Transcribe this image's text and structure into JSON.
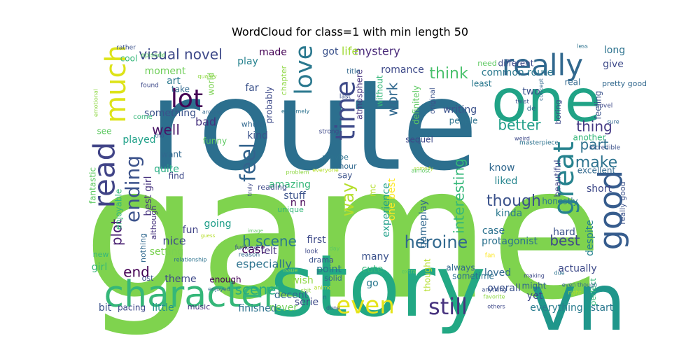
{
  "chart_data": {
    "type": "wordcloud",
    "title": "WordCloud for class=1 with min length 50",
    "palette": [
      "#440154",
      "#3b528b",
      "#2c728e",
      "#21918c",
      "#27ad81",
      "#5ec962",
      "#8fd744",
      "#fde725"
    ],
    "words": [
      {
        "text": "game",
        "weight": 1.0,
        "color": "#7fd34e"
      },
      {
        "text": "route",
        "weight": 0.78,
        "color": "#2c6f8e"
      },
      {
        "text": "story",
        "weight": 0.56,
        "color": "#22a884"
      },
      {
        "text": "vn",
        "weight": 0.54,
        "color": "#1f968b"
      },
      {
        "text": "one",
        "weight": 0.42,
        "color": "#20a386"
      },
      {
        "text": "character",
        "weight": 0.28,
        "color": "#35b779"
      },
      {
        "text": "really",
        "weight": 0.22,
        "color": "#31688e"
      },
      {
        "text": "much",
        "weight": 0.18,
        "color": "#dde318"
      },
      {
        "text": "good",
        "weight": 0.22,
        "color": "#365c8d"
      },
      {
        "text": "read",
        "weight": 0.2,
        "color": "#414487"
      },
      {
        "text": "great",
        "weight": 0.18,
        "color": "#26828e"
      },
      {
        "text": "love",
        "weight": 0.14,
        "color": "#2a788e"
      },
      {
        "text": "time",
        "weight": 0.17,
        "color": "#3e4a89"
      },
      {
        "text": "lot",
        "weight": 0.15,
        "color": "#440154"
      },
      {
        "text": "even",
        "weight": 0.16,
        "color": "#e5e419"
      },
      {
        "text": "still",
        "weight": 0.14,
        "color": "#46327e"
      },
      {
        "text": "feel",
        "weight": 0.13,
        "color": "#33638d"
      },
      {
        "text": "ending",
        "weight": 0.12,
        "color": "#3b528b"
      },
      {
        "text": "way",
        "weight": 0.09,
        "color": "#b5de2b"
      },
      {
        "text": "visual novel",
        "weight": 0.07,
        "color": "#3e4989"
      },
      {
        "text": "think",
        "weight": 0.07,
        "color": "#4ac16d"
      },
      {
        "text": "well",
        "weight": 0.07,
        "color": "#471365"
      },
      {
        "text": "thing",
        "weight": 0.06,
        "color": "#443983"
      },
      {
        "text": "heroine",
        "weight": 0.07,
        "color": "#31688e"
      },
      {
        "text": "make",
        "weight": 0.06,
        "color": "#2c728e"
      },
      {
        "text": "better",
        "weight": 0.06,
        "color": "#1f9e89"
      },
      {
        "text": "though",
        "weight": 0.06,
        "color": "#3b528b"
      },
      {
        "text": "plot",
        "weight": 0.06,
        "color": "#481f70"
      },
      {
        "text": "interesting",
        "weight": 0.06,
        "color": "#35b779"
      },
      {
        "text": "h scene",
        "weight": 0.05,
        "color": "#2a788e"
      },
      {
        "text": "best",
        "weight": 0.05,
        "color": "#3e4989"
      },
      {
        "text": "end",
        "weight": 0.05,
        "color": "#440154"
      },
      {
        "text": "scene",
        "weight": 0.05,
        "color": "#25ac82"
      },
      {
        "text": "work",
        "weight": 0.05,
        "color": "#31688e"
      },
      {
        "text": "part",
        "weight": 0.05,
        "color": "#2d708e"
      },
      {
        "text": "mystery",
        "weight": 0.04,
        "color": "#482878"
      },
      {
        "text": "life",
        "weight": 0.04,
        "color": "#a2da37"
      },
      {
        "text": "common route",
        "weight": 0.04,
        "color": "#2a788e"
      },
      {
        "text": "bad",
        "weight": 0.04,
        "color": "#46327e"
      },
      {
        "text": "played",
        "weight": 0.04,
        "color": "#1fa088"
      },
      {
        "text": "something",
        "weight": 0.04,
        "color": "#3b528b"
      },
      {
        "text": "protagonist",
        "weight": 0.04,
        "color": "#2c728e"
      },
      {
        "text": "setting",
        "weight": 0.04,
        "color": "#7ad151"
      },
      {
        "text": "actually",
        "weight": 0.04,
        "color": "#3e4a89"
      },
      {
        "text": "cast",
        "weight": 0.04,
        "color": "#440154"
      },
      {
        "text": "amazing",
        "weight": 0.04,
        "color": "#35b779"
      },
      {
        "text": "everything",
        "weight": 0.04,
        "color": "#287c8e"
      },
      {
        "text": "overall",
        "weight": 0.04,
        "color": "#3b528b"
      },
      {
        "text": "loved",
        "weight": 0.04,
        "color": "#31688e"
      },
      {
        "text": "liked",
        "weight": 0.04,
        "color": "#25858e"
      },
      {
        "text": "especially",
        "weight": 0.04,
        "color": "#2c728e"
      },
      {
        "text": "nice",
        "weight": 0.04,
        "color": "#3e4989"
      },
      {
        "text": "going",
        "weight": 0.035,
        "color": "#1f9e89"
      },
      {
        "text": "fun",
        "weight": 0.035,
        "color": "#414487"
      },
      {
        "text": "made",
        "weight": 0.035,
        "color": "#440154"
      },
      {
        "text": "art",
        "weight": 0.035,
        "color": "#2a788e"
      },
      {
        "text": "play",
        "weight": 0.035,
        "color": "#26828e"
      },
      {
        "text": "got",
        "weight": 0.035,
        "color": "#3b528b"
      },
      {
        "text": "romance",
        "weight": 0.03,
        "color": "#3e4a89"
      },
      {
        "text": "moment",
        "weight": 0.03,
        "color": "#6ece58"
      },
      {
        "text": "writing",
        "weight": 0.03,
        "color": "#3b528b"
      },
      {
        "text": "people",
        "weight": 0.025,
        "color": "#2c728e"
      },
      {
        "text": "kind",
        "weight": 0.03,
        "color": "#3b528b"
      },
      {
        "text": "know",
        "weight": 0.03,
        "color": "#31688e"
      },
      {
        "text": "short",
        "weight": 0.03,
        "color": "#3e4989"
      },
      {
        "text": "kinda",
        "weight": 0.03,
        "color": "#2a788e"
      },
      {
        "text": "girl",
        "weight": 0.03,
        "color": "#35b779"
      },
      {
        "text": "best girl",
        "weight": 0.03,
        "color": "#46327e"
      },
      {
        "text": "quite",
        "weight": 0.03,
        "color": "#25ac82"
      },
      {
        "text": "stuff",
        "weight": 0.03,
        "color": "#3b528b"
      },
      {
        "text": "n n",
        "weight": 0.03,
        "color": "#440154"
      },
      {
        "text": "experience",
        "weight": 0.03,
        "color": "#1fa088"
      },
      {
        "text": "gameplay",
        "weight": 0.03,
        "color": "#31688e"
      },
      {
        "text": "first",
        "weight": 0.03,
        "color": "#3e4a89"
      },
      {
        "text": "point",
        "weight": 0.03,
        "color": "#2c728e"
      },
      {
        "text": "many",
        "weight": 0.03,
        "color": "#3b528b"
      },
      {
        "text": "cute",
        "weight": 0.03,
        "color": "#35b779"
      },
      {
        "text": "go",
        "weight": 0.03,
        "color": "#2a788e"
      },
      {
        "text": "wish",
        "weight": 0.03,
        "color": "#8fd744"
      },
      {
        "text": "theme",
        "weight": 0.03,
        "color": "#3e4989"
      },
      {
        "text": "enough",
        "weight": 0.025,
        "color": "#440154"
      },
      {
        "text": "felt",
        "weight": 0.03,
        "color": "#46327e"
      },
      {
        "text": "finished",
        "weight": 0.025,
        "color": "#2c728e"
      },
      {
        "text": "little",
        "weight": 0.03,
        "color": "#21918c"
      },
      {
        "text": "bit",
        "weight": 0.025,
        "color": "#3b528b"
      },
      {
        "text": "never",
        "weight": 0.025,
        "color": "#6ece58"
      },
      {
        "text": "serie",
        "weight": 0.025,
        "color": "#3e4a89"
      },
      {
        "text": "decent",
        "weight": 0.025,
        "color": "#31688e"
      },
      {
        "text": "start",
        "weight": 0.025,
        "color": "#2a788e"
      },
      {
        "text": "yet",
        "weight": 0.025,
        "color": "#3e4989"
      },
      {
        "text": "might",
        "weight": 0.025,
        "color": "#31688e"
      },
      {
        "text": "case",
        "weight": 0.025,
        "color": "#2c728e"
      },
      {
        "text": "hard",
        "weight": 0.025,
        "color": "#3b528b"
      },
      {
        "text": "despite",
        "weight": 0.025,
        "color": "#26828e"
      },
      {
        "text": "honestly",
        "weight": 0.02,
        "color": "#2a788e"
      },
      {
        "text": "beautiful",
        "weight": 0.02,
        "color": "#3e4989"
      },
      {
        "text": "excellent",
        "weight": 0.02,
        "color": "#31688e"
      },
      {
        "text": "another",
        "weight": 0.02,
        "color": "#35b779"
      },
      {
        "text": "feeling",
        "weight": 0.02,
        "color": "#3b528b"
      },
      {
        "text": "long",
        "weight": 0.025,
        "color": "#2c728e"
      },
      {
        "text": "give",
        "weight": 0.025,
        "color": "#3e4a89"
      },
      {
        "text": "two",
        "weight": 0.025,
        "color": "#3b528b"
      },
      {
        "text": "real",
        "weight": 0.02,
        "color": "#31688e"
      },
      {
        "text": "least",
        "weight": 0.02,
        "color": "#2a788e"
      },
      {
        "text": "different",
        "weight": 0.02,
        "color": "#3e4989"
      },
      {
        "text": "far",
        "weight": 0.025,
        "color": "#3b528b"
      },
      {
        "text": "take",
        "weight": 0.02,
        "color": "#31688e"
      },
      {
        "text": "cool",
        "weight": 0.02,
        "color": "#35b779"
      },
      {
        "text": "see",
        "weight": 0.02,
        "color": "#5ec962"
      },
      {
        "text": "enjoyable",
        "weight": 0.02,
        "color": "#35b779"
      },
      {
        "text": "fantastic",
        "weight": 0.02,
        "color": "#5ec962"
      },
      {
        "text": "want",
        "weight": 0.02,
        "color": "#31688e"
      },
      {
        "text": "find",
        "weight": 0.02,
        "color": "#3e4989"
      },
      {
        "text": "although",
        "weight": 0.018,
        "color": "#46327e"
      },
      {
        "text": "say",
        "weight": 0.02,
        "color": "#3b528b"
      },
      {
        "text": "hour",
        "weight": 0.018,
        "color": "#31688e"
      },
      {
        "text": "maybe",
        "weight": 0.018,
        "color": "#2c728e"
      },
      {
        "text": "sequel",
        "weight": 0.018,
        "color": "#3e4989"
      },
      {
        "text": "funny",
        "weight": 0.018,
        "color": "#5ec962"
      },
      {
        "text": "whole",
        "weight": 0.018,
        "color": "#31688e"
      },
      {
        "text": "probably",
        "weight": 0.018,
        "color": "#3e4a89"
      },
      {
        "text": "without",
        "weight": 0.018,
        "color": "#35b779"
      },
      {
        "text": "atmosphere",
        "weight": 0.018,
        "color": "#46327e"
      },
      {
        "text": "definitely",
        "weight": 0.018,
        "color": "#5ec962"
      },
      {
        "text": "chapter",
        "weight": 0.016,
        "color": "#8fd744"
      },
      {
        "text": "world",
        "weight": 0.016,
        "color": "#7ad151"
      },
      {
        "text": "original",
        "weight": 0.016,
        "color": "#3b528b"
      },
      {
        "text": "thought",
        "weight": 0.018,
        "color": "#b5de2b"
      },
      {
        "text": "always",
        "weight": 0.016,
        "color": "#31688e"
      },
      {
        "text": "sometime",
        "weight": 0.016,
        "color": "#2c728e"
      },
      {
        "text": "reading",
        "weight": 0.016,
        "color": "#3e4989"
      },
      {
        "text": "unique",
        "weight": 0.016,
        "color": "#35b779"
      },
      {
        "text": "drama",
        "weight": 0.016,
        "color": "#3b528b"
      },
      {
        "text": "solid",
        "weight": 0.016,
        "color": "#31688e"
      },
      {
        "text": "pacing",
        "weight": 0.016,
        "color": "#3e4989"
      },
      {
        "text": "music",
        "weight": 0.016,
        "color": "#46327e"
      },
      {
        "text": "ost",
        "weight": 0.016,
        "color": "#3b528b"
      },
      {
        "text": "nothing",
        "weight": 0.016,
        "color": "#31688e"
      },
      {
        "text": "new",
        "weight": 0.016,
        "color": "#35b779"
      },
      {
        "text": "pretty good",
        "weight": 0.016,
        "color": "#31688e"
      },
      {
        "text": "really good",
        "weight": 0.016,
        "color": "#3b528b"
      },
      {
        "text": "boring",
        "weight": 0.016,
        "color": "#3e4989"
      },
      {
        "text": "perfect",
        "weight": 0.016,
        "color": "#35b779"
      },
      {
        "text": "need",
        "weight": 0.016,
        "color": "#5ec962"
      },
      {
        "text": "one best",
        "weight": 0.016,
        "color": "#fde725"
      },
      {
        "text": "mc",
        "weight": 0.016,
        "color": "#b5de2b"
      },
      {
        "text": "title",
        "weight": 0.014,
        "color": "#31688e"
      },
      {
        "text": "rather",
        "weight": 0.012,
        "color": "#3b528b"
      },
      {
        "text": "episode",
        "weight": 0.012,
        "color": "#5ec962"
      },
      {
        "text": "quality",
        "weight": 0.012,
        "color": "#8fd744"
      },
      {
        "text": "found",
        "weight": 0.012,
        "color": "#3e4989"
      },
      {
        "text": "come",
        "weight": 0.012,
        "color": "#35b779"
      },
      {
        "text": "around",
        "weight": 0.012,
        "color": "#31688e"
      },
      {
        "text": "last",
        "weight": 0.012,
        "color": "#3b528b"
      },
      {
        "text": "extremely",
        "weight": 0.012,
        "color": "#2c728e"
      },
      {
        "text": "strong",
        "weight": 0.012,
        "color": "#3e4989"
      },
      {
        "text": "concept",
        "weight": 0.012,
        "color": "#31688e"
      },
      {
        "text": "twist",
        "weight": 0.012,
        "color": "#3b528b"
      },
      {
        "text": "less",
        "weight": 0.012,
        "color": "#2c728e"
      },
      {
        "text": "novel",
        "weight": 0.012,
        "color": "#3e4989"
      },
      {
        "text": "sure",
        "weight": 0.012,
        "color": "#31688e"
      },
      {
        "text": "incredible",
        "weight": 0.012,
        "color": "#3b528b"
      },
      {
        "text": "masterpiece",
        "weight": 0.012,
        "color": "#2c728e"
      },
      {
        "text": "weird",
        "weight": 0.012,
        "color": "#3e4989"
      },
      {
        "text": "de",
        "weight": 0.012,
        "color": "#31688e"
      },
      {
        "text": "comedy",
        "weight": 0.01,
        "color": "#b5de2b"
      },
      {
        "text": "almost",
        "weight": 0.01,
        "color": "#5ec962"
      },
      {
        "text": "problem",
        "weight": 0.01,
        "color": "#8fd744"
      },
      {
        "text": "everyone",
        "weight": 0.01,
        "color": "#b5de2b"
      },
      {
        "text": "truly",
        "weight": 0.01,
        "color": "#3e4989"
      },
      {
        "text": "image",
        "weight": 0.01,
        "color": "#5ec962"
      },
      {
        "text": "fucking",
        "weight": 0.01,
        "color": "#3b528b"
      },
      {
        "text": "reason",
        "weight": 0.01,
        "color": "#31688e"
      },
      {
        "text": "relationship",
        "weight": 0.01,
        "color": "#2c728e"
      },
      {
        "text": "look",
        "weight": 0.01,
        "color": "#3e4989"
      },
      {
        "text": "issue",
        "weight": 0.01,
        "color": "#8fd744"
      },
      {
        "text": "anime",
        "weight": 0.01,
        "color": "#b5de2b"
      },
      {
        "text": "done",
        "weight": 0.01,
        "color": "#3b528b"
      },
      {
        "text": "extra",
        "weight": 0.01,
        "color": "#5ec962"
      },
      {
        "text": "enjoyed",
        "weight": 0.01,
        "color": "#31688e"
      },
      {
        "text": "making",
        "weight": 0.01,
        "color": "#3e4989"
      },
      {
        "text": "due",
        "weight": 0.01,
        "color": "#2c728e"
      },
      {
        "text": "even though",
        "weight": 0.01,
        "color": "#31688e"
      },
      {
        "text": "right",
        "weight": 0.01,
        "color": "#b5de2b"
      },
      {
        "text": "anything",
        "weight": 0.01,
        "color": "#3b528b"
      },
      {
        "text": "favorite",
        "weight": 0.01,
        "color": "#8fd744"
      },
      {
        "text": "others",
        "weight": 0.01,
        "color": "#3e4989"
      },
      {
        "text": "emotional",
        "weight": 0.01,
        "color": "#8fd744"
      },
      {
        "text": "tho",
        "weight": 0.01,
        "color": "#3b528b"
      },
      {
        "text": "guess",
        "weight": 0.01,
        "color": "#b5de2b"
      },
      {
        "text": "fan",
        "weight": 0.01,
        "color": "#fde725"
      },
      {
        "text": "day",
        "weight": 0.01,
        "color": "#5ec962"
      },
      {
        "text": "n",
        "weight": 0.01,
        "color": "#31688e"
      },
      {
        "text": "shit",
        "weight": 0.01,
        "color": "#8fd744"
      }
    ]
  }
}
